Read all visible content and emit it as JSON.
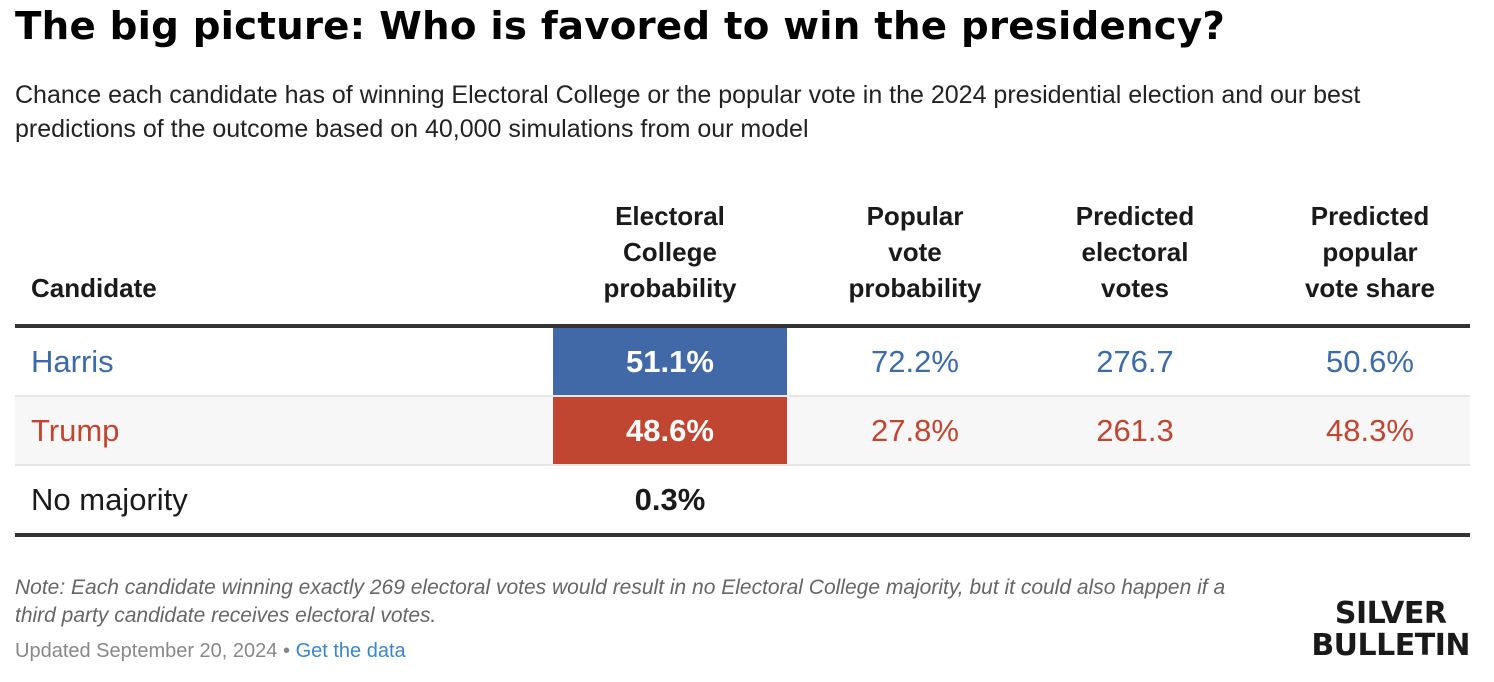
{
  "header": {
    "title": "The big picture: Who is favored to win the presidency?",
    "subtitle": "Chance each candidate has of winning Electoral College or the popular vote in the 2024 presidential election and our best predictions of the outcome based on 40,000 simulations from our model"
  },
  "colors": {
    "harris": "#4169a8",
    "trump": "#c14632",
    "harris_text": "#3d6aa8",
    "trump_text": "#c14632",
    "link": "#3b86c8"
  },
  "chart_data": {
    "type": "table",
    "title": "The big picture: Who is favored to win the presidency?",
    "columns": [
      "Candidate",
      "Electoral College probability",
      "Popular vote probability",
      "Predicted electoral votes",
      "Predicted popular vote share"
    ],
    "rows": [
      {
        "candidate": "Harris",
        "ec_prob": "51.1%",
        "pv_prob": "72.2%",
        "pred_ev": "276.7",
        "pred_pv": "50.6%"
      },
      {
        "candidate": "Trump",
        "ec_prob": "48.6%",
        "pv_prob": "27.8%",
        "pred_ev": "261.3",
        "pred_pv": "48.3%"
      },
      {
        "candidate": "No majority",
        "ec_prob": "0.3%",
        "pv_prob": "",
        "pred_ev": "",
        "pred_pv": ""
      }
    ]
  },
  "table": {
    "headers": {
      "candidate": "Candidate",
      "ec_prob": [
        "Electoral",
        "College",
        "probability"
      ],
      "pv_prob": [
        "Popular",
        "vote",
        "probability"
      ],
      "pred_ev": [
        "Predicted",
        "electoral",
        "votes"
      ],
      "pred_pv": [
        "Predicted",
        "popular",
        "vote share"
      ]
    }
  },
  "footer": {
    "note": "Note: Each candidate winning exactly 269 electoral votes would result in no Electoral College majority, but it could also happen if a third party candidate receives electoral votes.",
    "updated": "Updated September 20, 2024",
    "separator": "•",
    "link": "Get the data",
    "logo_line1": "SILVER",
    "logo_line2": "BULLETIN"
  }
}
